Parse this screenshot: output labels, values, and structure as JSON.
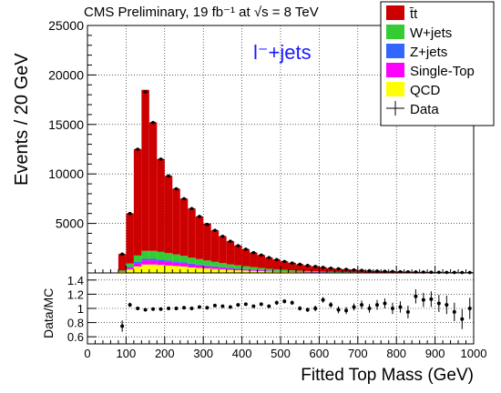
{
  "chart_data": {
    "type": "bar",
    "title": "CMS Preliminary, 19 fb⁻¹ at √s = 8 TeV",
    "annotation": "l⁻+jets",
    "xlabel": "Fitted Top Mass (GeV)",
    "ylabel": "Events / 20 GeV",
    "ratio_ylabel": "Data/MC",
    "xlim": [
      0,
      1000
    ],
    "ylim": [
      0,
      25000
    ],
    "ratio_ylim": [
      0.5,
      1.5
    ],
    "x_ticks": [
      "0",
      "100",
      "200",
      "300",
      "400",
      "500",
      "600",
      "700",
      "800",
      "900",
      "1000"
    ],
    "y_ticks": [
      "5000",
      "10000",
      "15000",
      "20000",
      "25000"
    ],
    "ratio_ticks": [
      "0.6",
      "0.8",
      "1",
      "1.2",
      "1.4"
    ],
    "bin_width": 20,
    "bin_low_edges": [
      80,
      100,
      120,
      140,
      160,
      180,
      200,
      220,
      240,
      260,
      280,
      300,
      320,
      340,
      360,
      380,
      400,
      420,
      440,
      460,
      480,
      500,
      520,
      540,
      560,
      580,
      600,
      620,
      640,
      660,
      680,
      700,
      720,
      740,
      760,
      780,
      800,
      820,
      840,
      860,
      880,
      900,
      920,
      940,
      960,
      980
    ],
    "series": [
      {
        "name": "QCD",
        "color": "#ffff00",
        "values": [
          100,
          350,
          650,
          850,
          850,
          800,
          750,
          700,
          650,
          550,
          500,
          450,
          400,
          350,
          300,
          270,
          240,
          210,
          180,
          150,
          130,
          110,
          95,
          80,
          70,
          60,
          50,
          40,
          35,
          30,
          25,
          20,
          18,
          15,
          12,
          10,
          8,
          7,
          6,
          5,
          4,
          4,
          3,
          3,
          2,
          2
        ]
      },
      {
        "name": "Single-Top",
        "color": "#ff00ff",
        "values": [
          50,
          180,
          330,
          420,
          420,
          400,
          370,
          340,
          310,
          280,
          250,
          220,
          190,
          170,
          150,
          130,
          115,
          100,
          85,
          70,
          60,
          50,
          45,
          40,
          35,
          30,
          25,
          20,
          18,
          15,
          12,
          10,
          9,
          8,
          7,
          6,
          5,
          4,
          3,
          3,
          2,
          2,
          2,
          2,
          1,
          1
        ]
      },
      {
        "name": "Z+jets",
        "color": "#3366ff",
        "values": [
          20,
          70,
          130,
          160,
          160,
          150,
          140,
          130,
          120,
          110,
          100,
          90,
          80,
          70,
          60,
          52,
          45,
          40,
          35,
          30,
          26,
          22,
          19,
          16,
          14,
          12,
          10,
          8,
          7,
          6,
          5,
          4,
          3,
          3,
          2,
          2,
          2,
          1,
          1,
          1,
          1,
          1,
          1,
          1,
          1,
          1
        ]
      },
      {
        "name": "W+jets",
        "color": "#33cc33",
        "values": [
          80,
          350,
          650,
          800,
          800,
          780,
          740,
          700,
          650,
          600,
          550,
          500,
          450,
          400,
          350,
          310,
          270,
          235,
          200,
          170,
          145,
          125,
          105,
          90,
          75,
          62,
          52,
          44,
          37,
          31,
          26,
          21,
          17,
          14,
          11,
          9,
          7,
          6,
          5,
          4,
          3,
          3,
          2,
          2,
          2,
          1
        ]
      },
      {
        "name": "t̄t",
        "color": "#cc0000",
        "values": [
          1650,
          5050,
          10740,
          16270,
          12970,
          9370,
          7800,
          6630,
          5770,
          4960,
          4300,
          3740,
          3180,
          2710,
          2340,
          2000,
          1730,
          1465,
          1300,
          1130,
          989,
          853,
          736,
          634,
          556,
          486,
          423,
          368,
          323,
          278,
          242,
          205,
          173,
          150,
          133,
          118,
          103,
          92,
          80,
          70,
          62,
          55,
          47,
          42,
          36,
          30
        ]
      }
    ],
    "data": {
      "name": "Data",
      "values": [
        1900,
        6000,
        12500,
        18300,
        15200,
        11500,
        9800,
        8500,
        7500,
        6500,
        5700,
        4900,
        4300,
        3700,
        3200,
        2750,
        2400,
        2050,
        1800,
        1550,
        1350,
        1160,
        1000,
        870,
        750,
        650,
        560,
        480,
        420,
        360,
        310,
        260,
        220,
        190,
        165,
        145,
        125,
        110,
        95,
        82,
        72,
        64,
        55,
        50,
        44,
        38
      ]
    },
    "ratio": [
      0.75,
      1.05,
      1.0,
      0.98,
      0.99,
      0.99,
      1.0,
      1.0,
      1.01,
      1.0,
      1.02,
      1.01,
      1.04,
      1.03,
      1.02,
      1.05,
      1.06,
      1.03,
      1.06,
      1.03,
      1.08,
      1.1,
      1.08,
      1.0,
      0.98,
      1.0,
      1.12,
      1.05,
      0.98,
      0.97,
      1.02,
      1.05,
      1.0,
      1.05,
      1.07,
      1.0,
      1.02,
      0.95,
      1.17,
      1.12,
      1.13,
      1.07,
      1.05,
      0.95,
      0.85,
      1.0
    ],
    "ratio_err": [
      0.08,
      0.03,
      0.02,
      0.01,
      0.01,
      0.01,
      0.01,
      0.01,
      0.01,
      0.01,
      0.01,
      0.01,
      0.01,
      0.01,
      0.02,
      0.02,
      0.02,
      0.02,
      0.02,
      0.02,
      0.03,
      0.03,
      0.03,
      0.03,
      0.03,
      0.04,
      0.04,
      0.04,
      0.05,
      0.05,
      0.05,
      0.06,
      0.06,
      0.07,
      0.07,
      0.08,
      0.08,
      0.09,
      0.1,
      0.1,
      0.11,
      0.12,
      0.13,
      0.13,
      0.14,
      0.15
    ],
    "legend": {
      "placement": "top-right",
      "entries": [
        {
          "label": "t̄t",
          "color": "#cc0000",
          "kind": "fill"
        },
        {
          "label": "W+jets",
          "color": "#33cc33",
          "kind": "fill"
        },
        {
          "label": "Z+jets",
          "color": "#3366ff",
          "kind": "fill"
        },
        {
          "label": "Single-Top",
          "color": "#ff00ff",
          "kind": "fill"
        },
        {
          "label": "QCD",
          "color": "#ffff00",
          "kind": "fill"
        },
        {
          "label": "Data",
          "color": "#000000",
          "kind": "marker"
        }
      ]
    }
  }
}
